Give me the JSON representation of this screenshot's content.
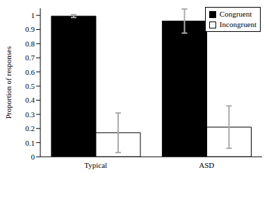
{
  "chart_data": {
    "type": "bar",
    "categories": [
      "Typical",
      "ASD"
    ],
    "series": [
      {
        "name": "Congruent",
        "color": "#000000",
        "values": [
          0.995,
          0.96
        ],
        "errors": [
          0.01,
          0.085
        ]
      },
      {
        "name": "Incongruent",
        "color": "#ffffff",
        "values": [
          0.17,
          0.21
        ],
        "errors": [
          0.14,
          0.15
        ]
      }
    ],
    "y_label": "Proportion of responses",
    "ylim": [
      0,
      1.05
    ],
    "yticks": [
      0,
      0.1,
      0.2,
      0.3,
      0.4,
      0.5,
      0.6,
      0.7,
      0.8,
      0.9,
      1
    ],
    "legend": "upper right"
  }
}
